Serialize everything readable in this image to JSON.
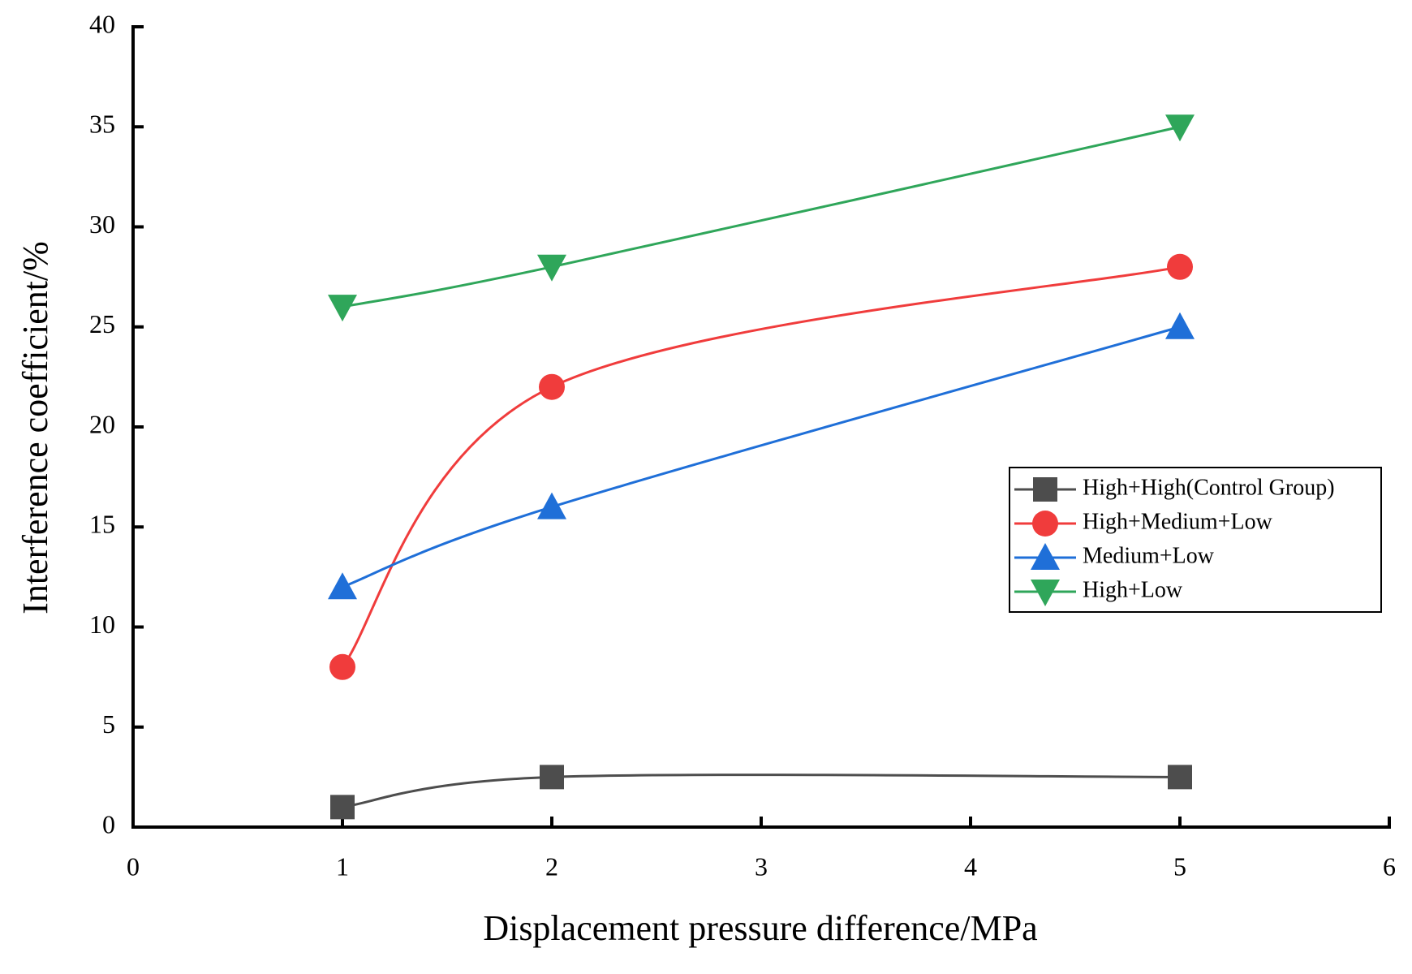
{
  "chart_data": {
    "type": "line",
    "x_label": "Displacement pressure difference/MPa",
    "y_label": "Interference coefficient/%",
    "x": [
      1,
      2,
      5
    ],
    "series": [
      {
        "name": "High+High(Control Group)",
        "color": "#4d4d4d",
        "marker": "square",
        "values": [
          1,
          2.5,
          2.5
        ]
      },
      {
        "name": "High+Medium+Low",
        "color": "#f03c3c",
        "marker": "circle",
        "values": [
          8,
          22,
          28
        ]
      },
      {
        "name": "Medium+Low",
        "color": "#1f6fd8",
        "marker": "triangle-up",
        "values": [
          12,
          16,
          25
        ]
      },
      {
        "name": "High+Low",
        "color": "#2fa65a",
        "marker": "triangle-down",
        "values": [
          26,
          28,
          35
        ]
      }
    ],
    "xlim": [
      0,
      6
    ],
    "xticks": [
      0,
      1,
      2,
      3,
      4,
      5,
      6
    ],
    "ylim": [
      0,
      40
    ],
    "yticks": [
      0,
      5,
      10,
      15,
      20,
      25,
      30,
      35,
      40
    ],
    "smooth": true,
    "legend": "right"
  }
}
